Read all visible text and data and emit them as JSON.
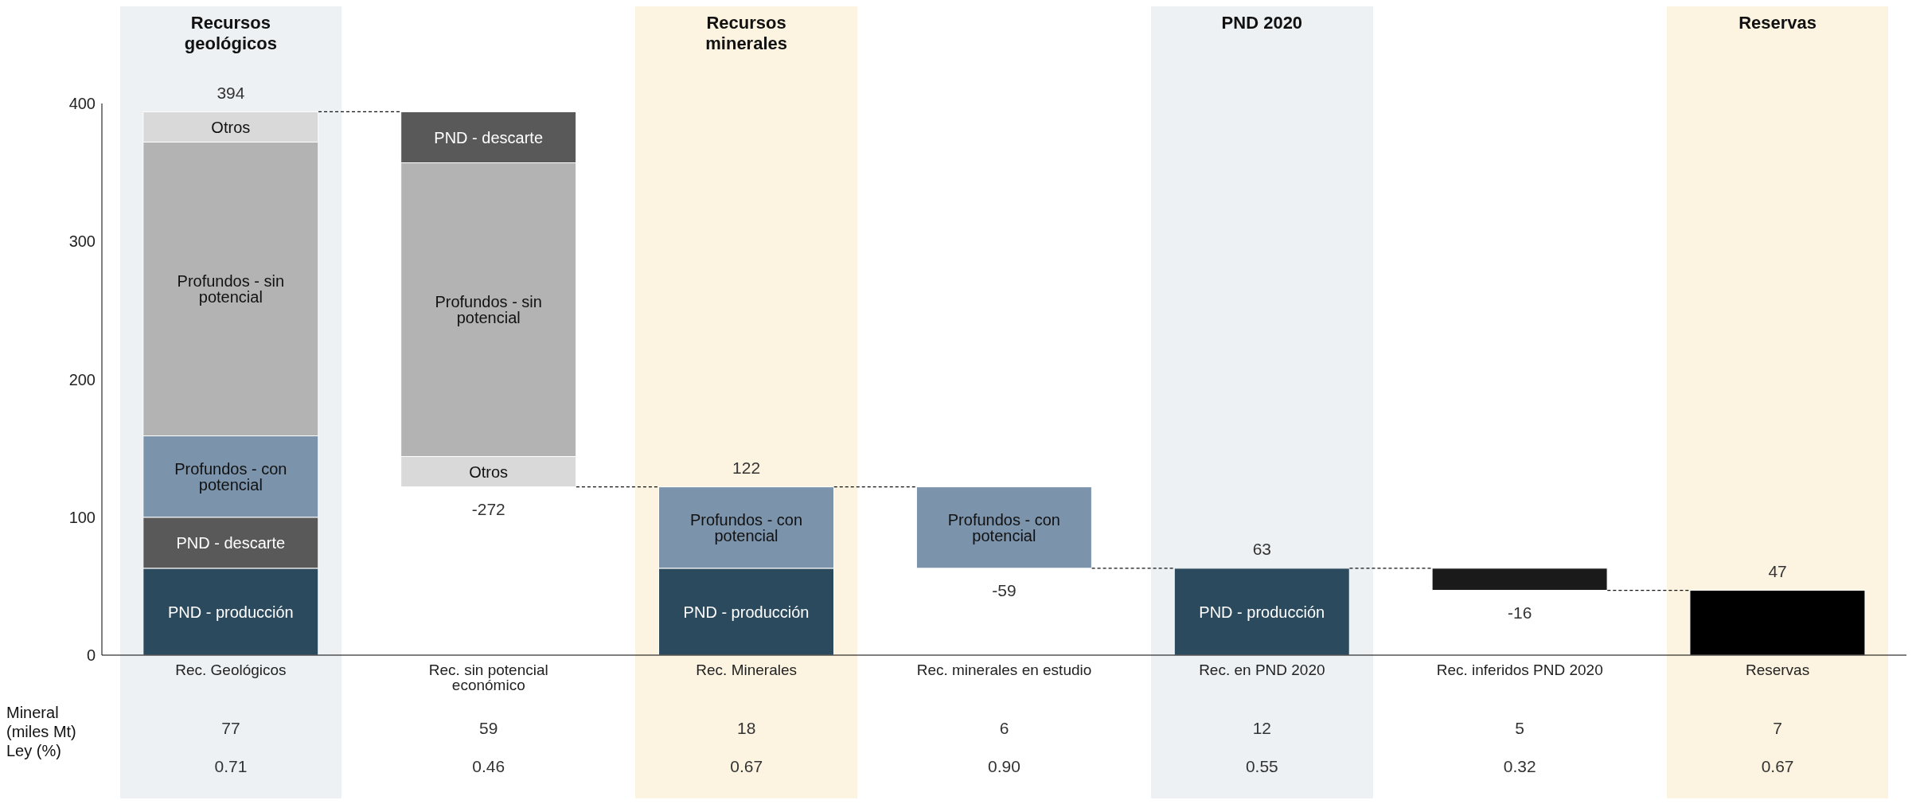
{
  "chart_data": {
    "type": "bar",
    "categories": [
      "Rec. Geológicos",
      "Rec. sin potencial económico",
      "Rec. Minerales",
      "Rec. minerales en estudio",
      "Rec. en PND 2020",
      "Rec. inferidos PND 2020",
      "Reservas"
    ],
    "series": [
      {
        "name": "PND - producción",
        "color": "#2c4a5e",
        "base": [
          0,
          null,
          0,
          null,
          0,
          null,
          null
        ],
        "values": [
          63,
          null,
          63,
          null,
          63,
          null,
          null
        ]
      },
      {
        "name": "PND - descarte",
        "color": "#595959",
        "base": [
          63,
          394,
          null,
          null,
          null,
          null,
          null
        ],
        "values": [
          37,
          -37,
          null,
          null,
          null,
          null,
          null
        ]
      },
      {
        "name": "Profundos - con potencial",
        "color": "#7b93ab",
        "base": [
          100,
          null,
          63,
          122,
          null,
          null,
          null
        ],
        "values": [
          59,
          null,
          59,
          -59,
          null,
          null,
          null
        ]
      },
      {
        "name": "Profundos - sin potencial",
        "color": "#b3b3b3",
        "base": [
          159,
          357,
          null,
          null,
          null,
          null,
          null
        ],
        "values": [
          213,
          -213,
          null,
          null,
          null,
          null,
          null
        ]
      },
      {
        "name": "Otros",
        "color": "#d9d9d9",
        "base": [
          372,
          144,
          null,
          null,
          null,
          null,
          null
        ],
        "values": [
          22,
          -22,
          null,
          null,
          null,
          null,
          null
        ]
      },
      {
        "color": "#1a1a1a",
        "base": [
          null,
          null,
          null,
          null,
          null,
          63,
          null
        ],
        "values": [
          null,
          null,
          null,
          null,
          null,
          -16,
          null
        ]
      },
      {
        "color": "#000000",
        "base": [
          null,
          null,
          null,
          null,
          null,
          null,
          0
        ],
        "values": [
          null,
          null,
          null,
          null,
          null,
          null,
          47
        ]
      }
    ],
    "totals": [
      "394",
      "-272",
      "122",
      "-59",
      "63",
      "-16",
      "47"
    ],
    "ylim": [
      0,
      400
    ],
    "yticks": [
      0,
      100,
      200,
      300,
      400
    ],
    "grid": false,
    "legend": false,
    "bands": [
      {
        "axis": "x",
        "from": "Rec. Geológicos",
        "to": "Rec. Geológicos",
        "label": "Recursos geológicos",
        "color": "#edf1f4"
      },
      {
        "axis": "x",
        "from": "Rec. Minerales",
        "to": "Rec. Minerales",
        "label": "Recursos minerales",
        "color": "#fcf4e0"
      },
      {
        "axis": "x",
        "from": "Rec. en PND 2020",
        "to": "Rec. en PND 2020",
        "label": "PND 2020",
        "color": "#edf1f4"
      },
      {
        "axis": "x",
        "from": "Reservas",
        "to": "Reservas",
        "label": "Reservas",
        "color": "#fcf4e0"
      }
    ],
    "annotations": [
      "Mineral (miles Mt)",
      "77",
      "59",
      "18",
      "6",
      "12",
      "5",
      "7",
      "Ley (%)",
      "0.71",
      "0.46",
      "0.67",
      "0.90",
      "0.55",
      "0.32",
      "0.67"
    ]
  }
}
